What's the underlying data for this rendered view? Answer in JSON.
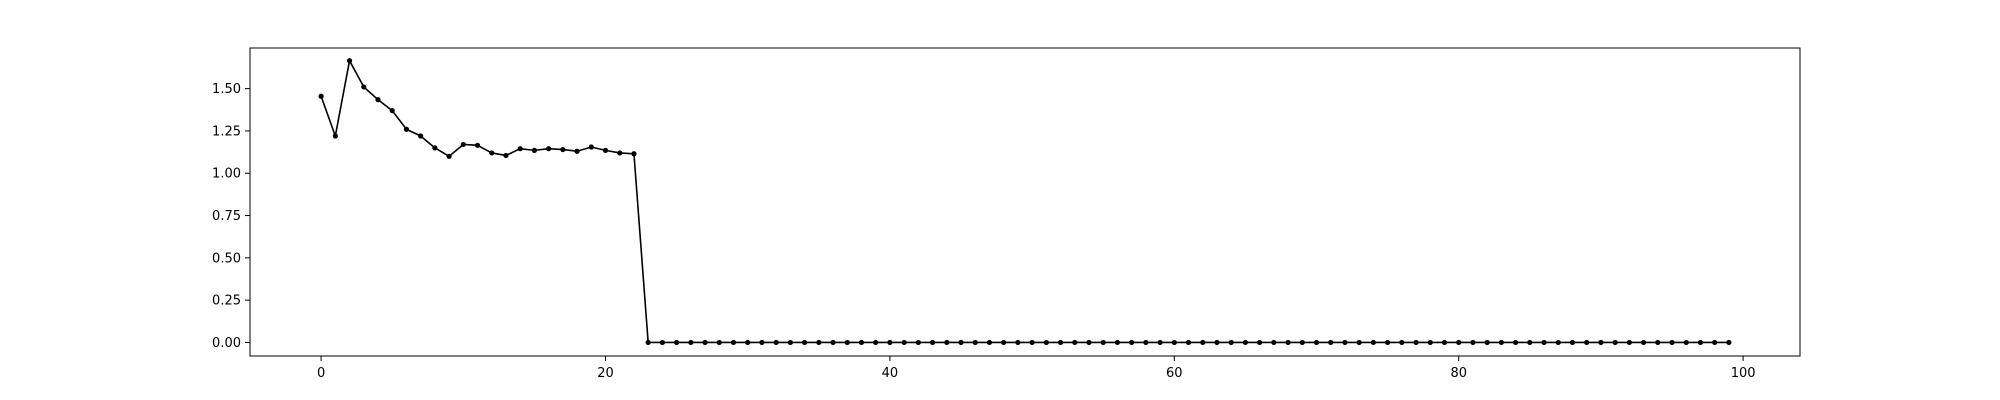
{
  "chart_data": {
    "type": "line",
    "title": "",
    "xlabel": "",
    "ylabel": "",
    "xlim": [
      -5,
      104
    ],
    "ylim": [
      -0.08,
      1.74
    ],
    "x_ticks": [
      {
        "value": 0,
        "label": "0"
      },
      {
        "value": 20,
        "label": "20"
      },
      {
        "value": 40,
        "label": "40"
      },
      {
        "value": 60,
        "label": "60"
      },
      {
        "value": 80,
        "label": "80"
      },
      {
        "value": 100,
        "label": "100"
      }
    ],
    "y_ticks": [
      {
        "value": 0.0,
        "label": "0.00"
      },
      {
        "value": 0.25,
        "label": "0.25"
      },
      {
        "value": 0.5,
        "label": "0.50"
      },
      {
        "value": 0.75,
        "label": "0.75"
      },
      {
        "value": 1.0,
        "label": "1.00"
      },
      {
        "value": 1.25,
        "label": "1.25"
      },
      {
        "value": 1.5,
        "label": "1.50"
      }
    ],
    "grid": false,
    "legend": "none",
    "line_color": "#000000",
    "series": [
      {
        "x": [
          0,
          1,
          2,
          3,
          4,
          5,
          6,
          7,
          8,
          9,
          10,
          11,
          12,
          13,
          14,
          15,
          16,
          17,
          18,
          19,
          20,
          21,
          22,
          23,
          24,
          25,
          26,
          27,
          28,
          29,
          30,
          31,
          32,
          33,
          34,
          35,
          36,
          37,
          38,
          39,
          40,
          41,
          42,
          43,
          44,
          45,
          46,
          47,
          48,
          49,
          50,
          51,
          52,
          53,
          54,
          55,
          56,
          57,
          58,
          59,
          60,
          61,
          62,
          63,
          64,
          65,
          66,
          67,
          68,
          69,
          70,
          71,
          72,
          73,
          74,
          75,
          76,
          77,
          78,
          79,
          80,
          81,
          82,
          83,
          84,
          85,
          86,
          87,
          88,
          89,
          90,
          91,
          92,
          93,
          94,
          95,
          96,
          97,
          98,
          99
        ],
        "y": [
          1.455,
          1.22,
          1.665,
          1.51,
          1.435,
          1.37,
          1.26,
          1.22,
          1.15,
          1.1,
          1.17,
          1.165,
          1.12,
          1.105,
          1.145,
          1.135,
          1.145,
          1.14,
          1.13,
          1.155,
          1.135,
          1.12,
          1.115,
          0,
          0,
          0,
          0,
          0,
          0,
          0,
          0,
          0,
          0,
          0,
          0,
          0,
          0,
          0,
          0,
          0,
          0,
          0,
          0,
          0,
          0,
          0,
          0,
          0,
          0,
          0,
          0,
          0,
          0,
          0,
          0,
          0,
          0,
          0,
          0,
          0,
          0,
          0,
          0,
          0,
          0,
          0,
          0,
          0,
          0,
          0,
          0,
          0,
          0,
          0,
          0,
          0,
          0,
          0,
          0,
          0,
          0,
          0,
          0,
          0,
          0,
          0,
          0,
          0,
          0,
          0,
          0,
          0,
          0,
          0,
          0,
          0,
          0,
          0,
          0,
          0
        ]
      }
    ]
  }
}
